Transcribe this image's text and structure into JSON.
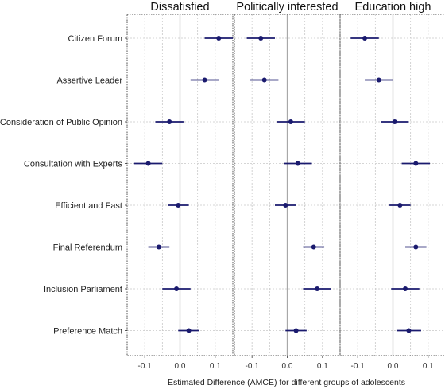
{
  "chart_data": {
    "type": "scatter",
    "subtype": "coefficient-plot-with-confidence-intervals",
    "xlabel": "Estimated Difference (AMCE) for different groups of adolescents",
    "xlim": [
      -0.15,
      0.15
    ],
    "xticks": [
      -0.1,
      0.0,
      0.1
    ],
    "xtick_labels": [
      "-0.1",
      "0.0",
      "0.1"
    ],
    "reference_line": 0,
    "grid": true,
    "point_color": "#1a1a6e",
    "panel_border": "dotted",
    "categories": [
      "Citizen Forum",
      "Assertive Leader",
      "Consideration of Public Opinion",
      "Consultation with Experts",
      "Efficient and Fast",
      "Final Referendum",
      "Inclusion Parliament",
      "Preference Match"
    ],
    "panels": [
      {
        "title": "Dissatisfied",
        "estimates": [
          0.11,
          0.07,
          -0.03,
          -0.09,
          -0.005,
          -0.06,
          -0.01,
          0.025
        ],
        "lower": [
          0.07,
          0.03,
          -0.07,
          -0.13,
          -0.035,
          -0.09,
          -0.05,
          -0.005
        ],
        "upper": [
          0.15,
          0.11,
          0.01,
          -0.05,
          0.025,
          -0.03,
          0.03,
          0.055
        ]
      },
      {
        "title": "Politically interested",
        "estimates": [
          -0.075,
          -0.065,
          0.01,
          0.03,
          -0.005,
          0.075,
          0.085,
          0.025
        ],
        "lower": [
          -0.115,
          -0.105,
          -0.03,
          -0.01,
          -0.035,
          0.045,
          0.045,
          -0.005
        ],
        "upper": [
          -0.035,
          -0.025,
          0.05,
          0.07,
          0.025,
          0.105,
          0.125,
          0.055
        ]
      },
      {
        "title": "Education high",
        "estimates": [
          -0.08,
          -0.04,
          0.005,
          0.065,
          0.02,
          0.065,
          0.035,
          0.045
        ],
        "lower": [
          -0.12,
          -0.08,
          -0.035,
          0.025,
          -0.01,
          0.035,
          -0.005,
          0.01
        ],
        "upper": [
          -0.04,
          0.0,
          0.045,
          0.105,
          0.05,
          0.095,
          0.075,
          0.08
        ]
      }
    ]
  }
}
